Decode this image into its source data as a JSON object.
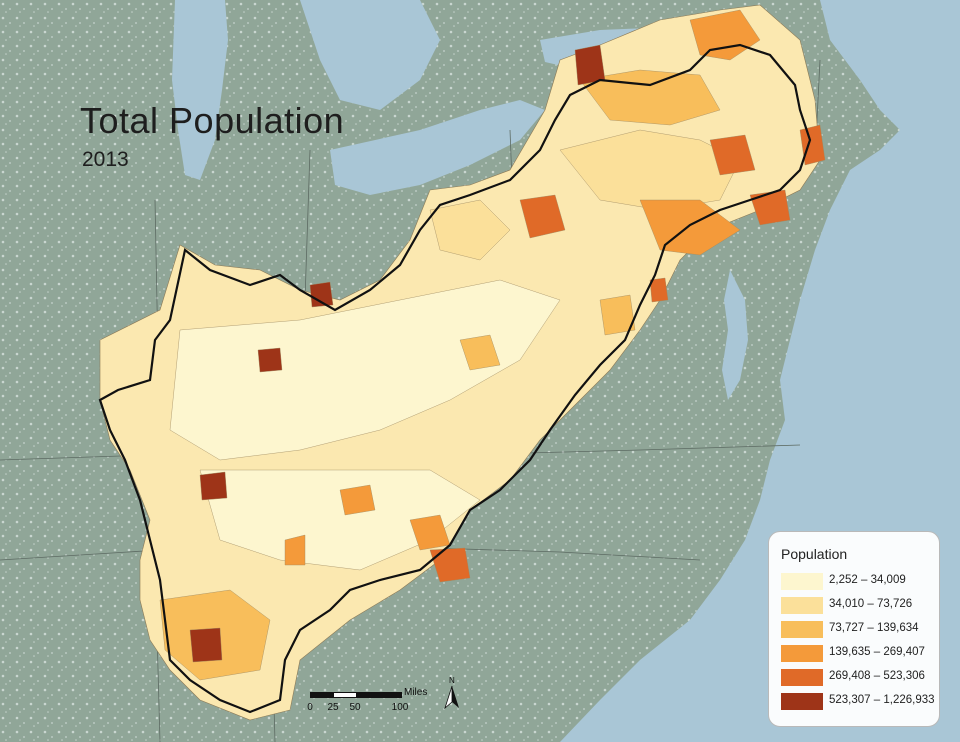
{
  "map": {
    "title": "Total Population",
    "subtitle": "2013",
    "legend": {
      "title": "Population",
      "classes": [
        {
          "label": "2,252 – 34,009",
          "color": "#fdf6cf"
        },
        {
          "label": "34,010 – 73,726",
          "color": "#fbe09a"
        },
        {
          "label": "73,727 – 139,634",
          "color": "#f8be5b"
        },
        {
          "label": "139,635 – 269,407",
          "color": "#f49a3a"
        },
        {
          "label": "269,408 – 523,306",
          "color": "#e06a28"
        },
        {
          "label": "523,307 – 1,226,933",
          "color": "#9e3418"
        }
      ]
    },
    "scale_bar": {
      "units": "Miles",
      "ticks": [
        "0",
        "25",
        "50",
        "100"
      ]
    },
    "north_arrow": {
      "label": "N",
      "icon": "north-arrow-icon"
    },
    "colors": {
      "water": "#a9c6d6",
      "land": "#8fa597",
      "region_outline": "#111111"
    }
  }
}
